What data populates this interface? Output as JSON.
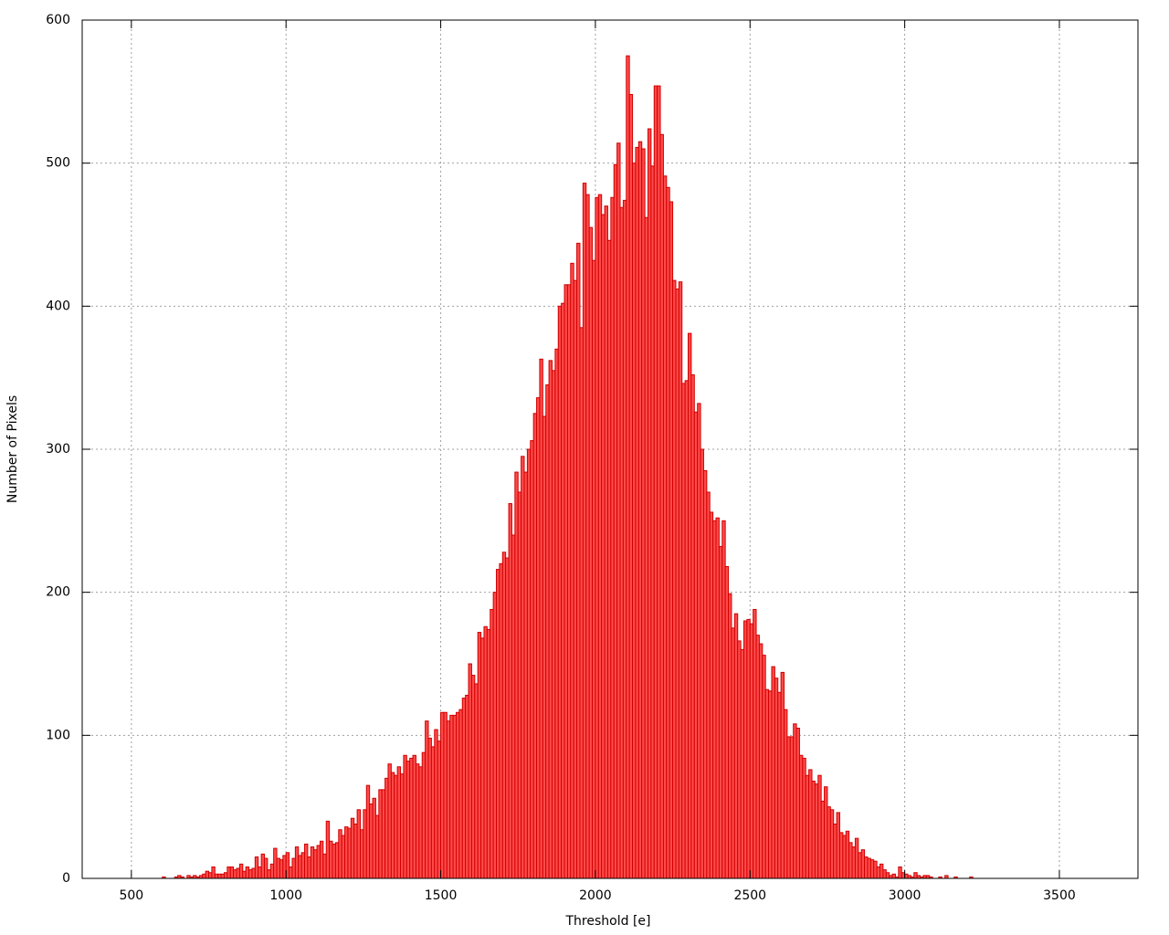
{
  "chart_data": {
    "type": "histogram",
    "x_label": "Threshold [e]",
    "y_label": "Number of Pixels",
    "color": "#ff4a4a",
    "edge_color": "#d00000",
    "grid": true,
    "xlim": [
      341,
      3754
    ],
    "ylim": [
      0,
      600
    ],
    "xticks": [
      500,
      1000,
      1500,
      2000,
      2500,
      3000,
      3500
    ],
    "yticks": [
      0,
      100,
      200,
      300,
      400,
      500,
      600
    ],
    "bins": [
      600,
      610,
      620,
      630,
      640,
      650,
      660,
      670,
      680,
      690,
      700,
      710,
      720,
      730,
      740,
      750,
      760,
      770,
      780,
      790,
      800,
      810,
      820,
      830,
      840,
      850,
      860,
      870,
      880,
      890,
      900,
      910,
      920,
      930,
      940,
      950,
      960,
      970,
      980,
      990,
      1000,
      1010,
      1020,
      1030,
      1040,
      1050,
      1060,
      1070,
      1080,
      1090,
      1100,
      1110,
      1120,
      1130,
      1140,
      1150,
      1160,
      1170,
      1180,
      1190,
      1200,
      1210,
      1220,
      1230,
      1240,
      1250,
      1260,
      1270,
      1280,
      1290,
      1300,
      1310,
      1320,
      1330,
      1340,
      1350,
      1360,
      1370,
      1380,
      1390,
      1400,
      1410,
      1420,
      1430,
      1440,
      1450,
      1460,
      1470,
      1480,
      1490,
      1500,
      1510,
      1520,
      1530,
      1540,
      1550,
      1560,
      1570,
      1580,
      1590,
      1600,
      1610,
      1620,
      1630,
      1640,
      1650,
      1660,
      1670,
      1680,
      1690,
      1700,
      1710,
      1720,
      1730,
      1740,
      1750,
      1760,
      1770,
      1780,
      1790,
      1800,
      1810,
      1820,
      1830,
      1840,
      1850,
      1860,
      1870,
      1880,
      1890,
      1900,
      1910,
      1920,
      1930,
      1940,
      1950,
      1960,
      1970,
      1980,
      1990,
      2000,
      2010,
      2020,
      2030,
      2040,
      2050,
      2060,
      2070,
      2080,
      2090,
      2100,
      2110,
      2120,
      2130,
      2140,
      2150,
      2160,
      2170,
      2180,
      2190,
      2200,
      2210,
      2220,
      2230,
      2240,
      2250,
      2260,
      2270,
      2280,
      2290,
      2300,
      2310,
      2320,
      2330,
      2340,
      2350,
      2360,
      2370,
      2380,
      2390,
      2400,
      2410,
      2420,
      2430,
      2440,
      2450,
      2460,
      2470,
      2480,
      2490,
      2500,
      2510,
      2520,
      2530,
      2540,
      2550,
      2560,
      2570,
      2580,
      2590,
      2600,
      2610,
      2620,
      2630,
      2640,
      2650,
      2660,
      2670,
      2680,
      2690,
      2700,
      2710,
      2720,
      2730,
      2740,
      2750,
      2760,
      2770,
      2780,
      2790,
      2800,
      2810,
      2820,
      2830,
      2840,
      2850,
      2860,
      2870,
      2880,
      2890,
      2900,
      2910,
      2920,
      2930,
      2940,
      2950,
      2960,
      2970,
      2980,
      2990,
      3000,
      3010,
      3020,
      3030,
      3040,
      3050,
      3060,
      3070,
      3080,
      3090,
      3100,
      3110,
      3120,
      3130,
      3140,
      3150,
      3160,
      3170,
      3180,
      3190,
      3200,
      3210,
      3220
    ],
    "values": [
      1,
      0,
      0,
      0,
      1,
      2,
      1,
      0,
      2,
      1,
      2,
      1,
      2,
      3,
      5,
      4,
      8,
      3,
      3,
      3,
      4,
      8,
      8,
      6,
      7,
      10,
      5,
      8,
      6,
      7,
      15,
      8,
      17,
      14,
      6,
      10,
      21,
      14,
      13,
      16,
      18,
      8,
      14,
      22,
      16,
      18,
      24,
      15,
      22,
      20,
      23,
      26,
      17,
      40,
      26,
      24,
      25,
      34,
      30,
      36,
      35,
      42,
      38,
      48,
      34,
      48,
      65,
      52,
      56,
      44,
      62,
      62,
      70,
      80,
      74,
      72,
      78,
      73,
      86,
      82,
      84,
      86,
      80,
      78,
      88,
      110,
      98,
      92,
      104,
      96,
      116,
      116,
      110,
      114,
      114,
      116,
      118,
      126,
      128,
      150,
      142,
      136,
      172,
      168,
      176,
      174,
      188,
      200,
      216,
      220,
      228,
      224,
      262,
      240,
      284,
      270,
      295,
      284,
      300,
      306,
      325,
      336,
      363,
      323,
      345,
      362,
      355,
      370,
      400,
      402,
      415,
      415,
      430,
      418,
      444,
      385,
      486,
      478,
      455,
      432,
      476,
      478,
      464,
      470,
      446,
      476,
      499,
      514,
      469,
      474,
      575,
      548,
      500,
      511,
      515,
      510,
      462,
      524,
      498,
      554,
      554,
      520,
      491,
      483,
      473,
      418,
      412,
      417,
      346,
      348,
      381,
      352,
      326,
      332,
      300,
      285,
      270,
      256,
      250,
      252,
      232,
      250,
      218,
      199,
      175,
      185,
      166,
      160,
      180,
      181,
      178,
      188,
      170,
      164,
      156,
      132,
      131,
      148,
      140,
      130,
      144,
      118,
      99,
      99,
      108,
      105,
      86,
      84,
      72,
      76,
      68,
      66,
      72,
      54,
      64,
      50,
      48,
      38,
      46,
      32,
      30,
      33,
      25,
      22,
      28,
      18,
      20,
      15,
      14,
      13,
      12,
      8,
      10,
      6,
      4,
      2,
      3,
      1,
      8,
      4,
      3,
      2,
      1,
      4,
      2,
      1,
      2,
      2,
      1,
      0,
      0,
      1,
      0,
      2,
      0,
      0,
      1,
      0,
      0,
      0,
      0,
      1
    ]
  }
}
